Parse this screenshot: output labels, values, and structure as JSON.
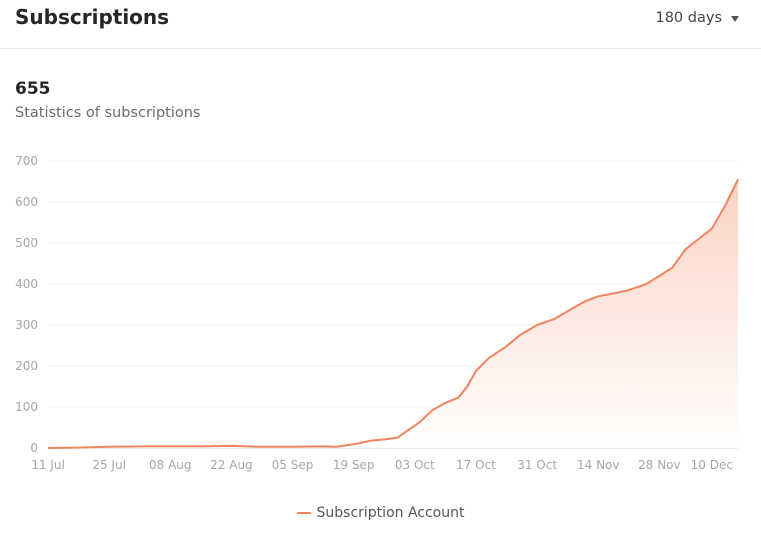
{
  "header": {
    "title": "Subscriptions",
    "range_label": "180 days"
  },
  "summary": {
    "value": "655",
    "caption": "Statistics of subscriptions"
  },
  "colors": {
    "line": "#f0845e",
    "fill_top": "#fcd2c3",
    "fill_bottom": "#ffffff",
    "grid": "#f0f0f0",
    "axis": "#d9d9d9"
  },
  "chart_data": {
    "type": "area",
    "xlabel": "",
    "ylabel": "",
    "ylim": [
      0,
      700
    ],
    "yticks": [
      0,
      100,
      200,
      300,
      400,
      500,
      600,
      700
    ],
    "xticks": [
      "11 Jul",
      "25 Jul",
      "08 Aug",
      "22 Aug",
      "05 Sep",
      "19 Sep",
      "03 Oct",
      "17 Oct",
      "31 Oct",
      "14 Nov",
      "28 Nov",
      "10 Dec"
    ],
    "grid": true,
    "legend_position": "bottom",
    "series": [
      {
        "name": "Subscription Account",
        "x": [
          "11 Jul",
          "18 Jul",
          "25 Jul",
          "01 Aug",
          "08 Aug",
          "15 Aug",
          "22 Aug",
          "29 Aug",
          "05 Sep",
          "12 Sep",
          "15 Sep",
          "19 Sep",
          "23 Sep",
          "26 Sep",
          "29 Sep",
          "01 Oct",
          "04 Oct",
          "07 Oct",
          "10 Oct",
          "13 Oct",
          "15 Oct",
          "17 Oct",
          "20 Oct",
          "24 Oct",
          "27 Oct",
          "31 Oct",
          "04 Nov",
          "08 Nov",
          "11 Nov",
          "14 Nov",
          "18 Nov",
          "21 Nov",
          "25 Nov",
          "28 Nov",
          "01 Dec",
          "04 Dec",
          "07 Dec",
          "10 Dec",
          "13 Dec",
          "16 Dec"
        ],
        "values": [
          0,
          1,
          3,
          4,
          4,
          4,
          5,
          3,
          3,
          4,
          3,
          9,
          18,
          21,
          25,
          40,
          62,
          92,
          110,
          123,
          150,
          188,
          220,
          248,
          275,
          300,
          315,
          340,
          358,
          370,
          378,
          385,
          400,
          420,
          440,
          485,
          510,
          535,
          590,
          655
        ]
      }
    ]
  }
}
